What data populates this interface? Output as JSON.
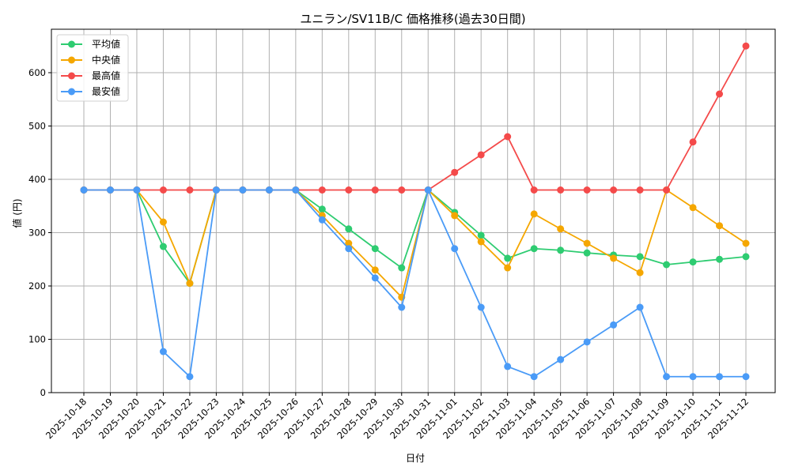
{
  "chart_data": {
    "type": "line",
    "title": "ユニラン/SV11B/C 価格推移(過去30日間)",
    "xlabel": "日付",
    "ylabel": "値 (円)",
    "ylim": [
      0,
      680
    ],
    "yticks": [
      0,
      100,
      200,
      300,
      400,
      500,
      600
    ],
    "grid": true,
    "legend_position": "upper left",
    "categories": [
      "2025-10-18",
      "2025-10-19",
      "2025-10-20",
      "2025-10-21",
      "2025-10-22",
      "2025-10-23",
      "2025-10-24",
      "2025-10-25",
      "2025-10-26",
      "2025-10-27",
      "2025-10-28",
      "2025-10-29",
      "2025-10-30",
      "2025-10-31",
      "2025-11-01",
      "2025-11-02",
      "2025-11-03",
      "2025-11-04",
      "2025-11-05",
      "2025-11-06",
      "2025-11-07",
      "2025-11-08",
      "2025-11-09",
      "2025-11-10",
      "2025-11-11",
      "2025-11-12"
    ],
    "series": [
      {
        "name": "平均値",
        "color": "#2ecc71",
        "values": [
          380,
          380,
          380,
          274,
          205,
          380,
          380,
          380,
          380,
          344,
          307,
          270,
          234,
          380,
          338,
          295,
          252,
          270,
          267,
          262,
          258,
          255,
          240,
          245,
          250,
          255
        ]
      },
      {
        "name": "中央値",
        "color": "#f5a700",
        "values": [
          380,
          380,
          380,
          320,
          205,
          380,
          380,
          380,
          380,
          332,
          280,
          230,
          179,
          380,
          332,
          283,
          234,
          335,
          307,
          280,
          252,
          225,
          380,
          347,
          313,
          280
        ]
      },
      {
        "name": "最高値",
        "color": "#f44a4a",
        "values": [
          380,
          380,
          380,
          380,
          380,
          380,
          380,
          380,
          380,
          380,
          380,
          380,
          380,
          380,
          413,
          446,
          480,
          380,
          380,
          380,
          380,
          380,
          380,
          470,
          560,
          650
        ]
      },
      {
        "name": "最安値",
        "color": "#4a9bf7",
        "values": [
          380,
          380,
          380,
          77,
          30,
          380,
          380,
          380,
          380,
          324,
          270,
          215,
          160,
          380,
          270,
          160,
          49,
          30,
          62,
          95,
          127,
          160,
          30,
          30,
          30,
          30
        ]
      }
    ]
  }
}
